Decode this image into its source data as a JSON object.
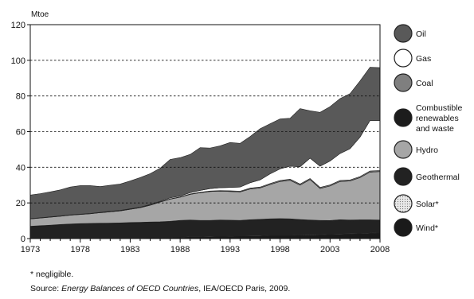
{
  "chart_data": {
    "type": "area",
    "stacked": true,
    "unit_label": "Mtoe",
    "x": [
      1973,
      1974,
      1975,
      1976,
      1977,
      1978,
      1979,
      1980,
      1981,
      1982,
      1983,
      1984,
      1985,
      1986,
      1987,
      1988,
      1989,
      1990,
      1991,
      1992,
      1993,
      1994,
      1995,
      1996,
      1997,
      1998,
      1999,
      2000,
      2001,
      2002,
      2003,
      2004,
      2005,
      2006,
      2007,
      2008
    ],
    "x_ticks": [
      1973,
      1978,
      1983,
      1988,
      1993,
      1998,
      2003,
      2008
    ],
    "ylim": [
      0,
      120
    ],
    "y_ticks": [
      0,
      20,
      40,
      60,
      80,
      100,
      120
    ],
    "dashed_gridlines": [
      20,
      40,
      60,
      80,
      100
    ],
    "series": [
      {
        "name": "Wind*",
        "color": "#1a1a1a",
        "values": [
          0.3,
          0.3,
          0.3,
          0.3,
          0.4,
          0.4,
          0.4,
          0.4,
          0.4,
          0.4,
          0.4,
          0.4,
          0.5,
          0.5,
          0.6,
          0.8,
          1.0,
          1.0,
          1.1,
          1.2,
          1.3,
          1.4,
          1.5,
          1.6,
          1.8,
          1.8,
          1.8,
          1.9,
          2.0,
          2.1,
          2.3,
          2.5,
          2.6,
          2.8,
          3.0,
          3.2
        ]
      },
      {
        "name": "Solar*",
        "color": "#d0d0d0",
        "values": [
          0.1,
          0.1,
          0.1,
          0.1,
          0.1,
          0.1,
          0.1,
          0.1,
          0.1,
          0.1,
          0.1,
          0.1,
          0.1,
          0.2,
          0.2,
          0.2,
          0.3,
          0.3,
          0.3,
          0.3,
          0.3,
          0.3,
          0.3,
          0.3,
          0.3,
          0.3,
          0.3,
          0.3,
          0.3,
          0.3,
          0.3,
          0.3,
          0.3,
          0.3,
          0.3,
          0.3
        ]
      },
      {
        "name": "Geothermal",
        "color": "#222222",
        "values": [
          6.0,
          6.3,
          6.6,
          7.0,
          7.2,
          7.4,
          7.5,
          7.6,
          7.7,
          7.8,
          8.0,
          8.1,
          8.2,
          8.2,
          8.4,
          8.7,
          8.6,
          8.4,
          8.3,
          8.4,
          8.2,
          8.0,
          8.3,
          8.4,
          8.5,
          8.6,
          8.5,
          8.0,
          7.6,
          7.3,
          7.0,
          7.3,
          7.0,
          6.9,
          6.7,
          6.4
        ]
      },
      {
        "name": "Combustible renewables and waste",
        "color": "#1c1c1c",
        "values": [
          0.5,
          0.5,
          0.5,
          0.5,
          0.5,
          0.5,
          0.5,
          0.5,
          0.5,
          0.5,
          0.5,
          0.5,
          0.5,
          0.5,
          0.5,
          0.5,
          0.5,
          0.5,
          0.5,
          0.5,
          0.5,
          0.5,
          0.5,
          0.5,
          0.5,
          0.5,
          0.5,
          0.5,
          0.5,
          0.5,
          0.5,
          0.5,
          0.5,
          0.5,
          0.5,
          0.5
        ]
      },
      {
        "name": "Hydro",
        "color": "#a6a6a6",
        "values": [
          4.1,
          4.3,
          4.5,
          4.6,
          4.9,
          5.1,
          5.4,
          5.9,
          6.3,
          6.7,
          7.4,
          8.2,
          9.4,
          11.1,
          12.4,
          13.0,
          14.4,
          15.5,
          16.2,
          16.2,
          16.1,
          16.0,
          17.2,
          17.6,
          19.2,
          20.8,
          21.6,
          19.3,
          22.7,
          17.9,
          19.4,
          21.4,
          21.9,
          23.7,
          26.8,
          27.2
        ]
      },
      {
        "name": "Coal",
        "color": "#7f7f7f",
        "values": [
          0.1,
          0.1,
          0.1,
          0.1,
          0.1,
          0.1,
          0.1,
          0.1,
          0.1,
          0.1,
          0.1,
          0.1,
          0.1,
          0.1,
          0.2,
          0.2,
          0.2,
          0.3,
          0.3,
          0.3,
          0.4,
          0.4,
          0.5,
          0.5,
          0.6,
          0.6,
          0.6,
          0.6,
          0.6,
          0.6,
          0.6,
          0.6,
          0.6,
          0.6,
          0.6,
          0.6
        ]
      },
      {
        "name": "Gas",
        "color": "#ffffff",
        "values": [
          0.1,
          0.1,
          0.1,
          0.1,
          0.1,
          0.1,
          0.1,
          0.1,
          0.2,
          0.2,
          0.2,
          0.2,
          0.3,
          0.3,
          0.5,
          0.5,
          0.7,
          1.0,
          1.3,
          1.6,
          1.9,
          2.3,
          3.0,
          4.0,
          5.4,
          6.5,
          7.3,
          9.7,
          11.4,
          11.9,
          13.4,
          15.1,
          17.5,
          22.1,
          28.3,
          28.0
        ]
      },
      {
        "name": "Oil",
        "color": "#595959",
        "values": [
          13.2,
          13.5,
          14.0,
          14.6,
          15.6,
          16.0,
          15.6,
          14.5,
          14.6,
          14.8,
          15.6,
          16.6,
          17.3,
          18.6,
          21.6,
          21.5,
          21.5,
          24.0,
          22.8,
          23.5,
          25.2,
          24.5,
          25.9,
          28.7,
          28.1,
          28.0,
          26.9,
          32.6,
          26.6,
          30.2,
          30.5,
          30.8,
          30.9,
          31.5,
          29.9,
          29.7
        ]
      }
    ]
  },
  "legend": [
    {
      "label": "Oil",
      "swatch": "oil"
    },
    {
      "label": "Gas",
      "swatch": "gas"
    },
    {
      "label": "Coal",
      "swatch": "coal"
    },
    {
      "label": "Combustible\nrenewables\nand waste",
      "swatch": "combustible"
    },
    {
      "label": "Hydro",
      "swatch": "hydro"
    },
    {
      "label": "Geothermal",
      "swatch": "geothermal"
    },
    {
      "label": "Solar*",
      "swatch": "solar"
    },
    {
      "label": "Wind*",
      "swatch": "wind"
    }
  ],
  "footnote": "* negligible.",
  "source": {
    "prefix": "Source: ",
    "title": "Energy Balances of OECD Countries",
    "suffix": ", IEA/OECD Paris, 2009."
  }
}
